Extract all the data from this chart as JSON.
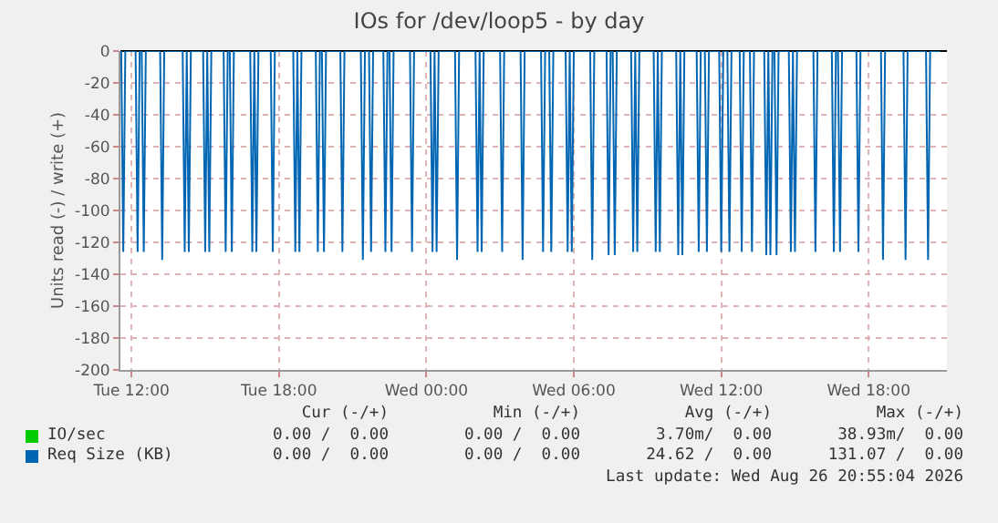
{
  "chart_data": {
    "type": "line",
    "title": "IOs for /dev/loop5 - by day",
    "ylabel": "Units read (-) / write (+)",
    "xlim": [
      "2026-08-25T11:33",
      "2026-08-26T21:11"
    ],
    "xticks": [
      {
        "value": "2026-08-25T12:00",
        "label": "Tue 12:00"
      },
      {
        "value": "2026-08-25T18:00",
        "label": "Tue 18:00"
      },
      {
        "value": "2026-08-26T00:00",
        "label": "Wed 00:00"
      },
      {
        "value": "2026-08-26T06:00",
        "label": "Wed 06:00"
      },
      {
        "value": "2026-08-26T12:00",
        "label": "Wed 12:00"
      },
      {
        "value": "2026-08-26T18:00",
        "label": "Wed 18:00"
      }
    ],
    "ylim": [
      -200,
      0
    ],
    "yticks": [
      -200,
      -180,
      -160,
      -140,
      -120,
      -100,
      -80,
      -60,
      -40,
      -20,
      0
    ],
    "grid": true,
    "legend": "bottom",
    "marker": "none",
    "line_style": "solid",
    "series": [
      {
        "name": "IO/sec",
        "color": "#00cc00"
      },
      {
        "name": "Req Size (KB)",
        "color": "#0066b3",
        "x": [
          "2026-08-25T11:35",
          "2026-08-25T11:40",
          "2026-08-25T11:45",
          "2026-08-25T12:10",
          "2026-08-25T12:15",
          "2026-08-25T12:20",
          "2026-08-25T12:25",
          "2026-08-25T12:30",
          "2026-08-25T12:35",
          "2026-08-25T13:10",
          "2026-08-25T13:15",
          "2026-08-25T13:20",
          "2026-08-25T14:05",
          "2026-08-25T14:10",
          "2026-08-25T14:15",
          "2026-08-25T14:20",
          "2026-08-25T14:25",
          "2026-08-25T14:55",
          "2026-08-25T15:00",
          "2026-08-25T15:05",
          "2026-08-25T15:10",
          "2026-08-25T15:15",
          "2026-08-25T15:45",
          "2026-08-25T15:50",
          "2026-08-25T15:55",
          "2026-08-25T16:00",
          "2026-08-25T16:05",
          "2026-08-25T16:10",
          "2026-08-25T16:50",
          "2026-08-25T16:55",
          "2026-08-25T17:00",
          "2026-08-25T17:05",
          "2026-08-25T17:10",
          "2026-08-25T17:40",
          "2026-08-25T17:45",
          "2026-08-25T17:50",
          "2026-08-25T18:35",
          "2026-08-25T18:40",
          "2026-08-25T18:45",
          "2026-08-25T18:50",
          "2026-08-25T18:55",
          "2026-08-25T19:30",
          "2026-08-25T19:35",
          "2026-08-25T19:40",
          "2026-08-25T19:45",
          "2026-08-25T19:50",
          "2026-08-25T19:55",
          "2026-08-25T20:30",
          "2026-08-25T20:35",
          "2026-08-25T20:40",
          "2026-08-25T21:20",
          "2026-08-25T21:25",
          "2026-08-25T21:30",
          "2026-08-25T21:40",
          "2026-08-25T21:45",
          "2026-08-25T21:50",
          "2026-08-25T22:15",
          "2026-08-25T22:20",
          "2026-08-25T22:25",
          "2026-08-25T22:30",
          "2026-08-25T22:35",
          "2026-08-25T22:40",
          "2026-08-25T23:20",
          "2026-08-25T23:25",
          "2026-08-25T23:30",
          "2026-08-26T00:10",
          "2026-08-26T00:15",
          "2026-08-26T00:20",
          "2026-08-26T00:25",
          "2026-08-26T00:30",
          "2026-08-26T01:10",
          "2026-08-26T01:15",
          "2026-08-26T01:20",
          "2026-08-26T02:00",
          "2026-08-26T02:05",
          "2026-08-26T02:10",
          "2026-08-26T02:15",
          "2026-08-26T02:20",
          "2026-08-26T03:00",
          "2026-08-26T03:05",
          "2026-08-26T03:10",
          "2026-08-26T03:50",
          "2026-08-26T03:55",
          "2026-08-26T04:00",
          "2026-08-26T04:40",
          "2026-08-26T04:45",
          "2026-08-26T04:50",
          "2026-08-26T05:00",
          "2026-08-26T05:05",
          "2026-08-26T05:10",
          "2026-08-26T05:40",
          "2026-08-26T05:45",
          "2026-08-26T05:50",
          "2026-08-26T05:55",
          "2026-08-26T06:00",
          "2026-08-26T06:40",
          "2026-08-26T06:45",
          "2026-08-26T06:50",
          "2026-08-26T07:20",
          "2026-08-26T07:25",
          "2026-08-26T07:30",
          "2026-08-26T07:35",
          "2026-08-26T07:40",
          "2026-08-26T07:45",
          "2026-08-26T08:20",
          "2026-08-26T08:25",
          "2026-08-26T08:30",
          "2026-08-26T08:35",
          "2026-08-26T08:40",
          "2026-08-26T09:15",
          "2026-08-26T09:20",
          "2026-08-26T09:25",
          "2026-08-26T09:30",
          "2026-08-26T09:35",
          "2026-08-26T10:10",
          "2026-08-26T10:15",
          "2026-08-26T10:20",
          "2026-08-26T10:25",
          "2026-08-26T10:30",
          "2026-08-26T11:00",
          "2026-08-26T11:05",
          "2026-08-26T11:10",
          "2026-08-26T11:20",
          "2026-08-26T11:25",
          "2026-08-26T11:30",
          "2026-08-26T11:55",
          "2026-08-26T12:00",
          "2026-08-26T12:05",
          "2026-08-26T12:15",
          "2026-08-26T12:20",
          "2026-08-26T12:25",
          "2026-08-26T12:45",
          "2026-08-26T12:50",
          "2026-08-26T12:55",
          "2026-08-26T13:10",
          "2026-08-26T13:15",
          "2026-08-26T13:20",
          "2026-08-26T13:45",
          "2026-08-26T13:50",
          "2026-08-26T13:55",
          "2026-08-26T14:00",
          "2026-08-26T14:05",
          "2026-08-26T14:10",
          "2026-08-26T14:15",
          "2026-08-26T14:20",
          "2026-08-26T14:45",
          "2026-08-26T14:50",
          "2026-08-26T14:55",
          "2026-08-26T15:00",
          "2026-08-26T15:05",
          "2026-08-26T15:45",
          "2026-08-26T15:50",
          "2026-08-26T15:55",
          "2026-08-26T16:30",
          "2026-08-26T16:35",
          "2026-08-26T16:40",
          "2026-08-26T16:45",
          "2026-08-26T16:50",
          "2026-08-26T16:55",
          "2026-08-26T17:30",
          "2026-08-26T17:35",
          "2026-08-26T17:40",
          "2026-08-26T18:30",
          "2026-08-26T18:35",
          "2026-08-26T18:40",
          "2026-08-26T19:25",
          "2026-08-26T19:30",
          "2026-08-26T19:35",
          "2026-08-26T20:20",
          "2026-08-26T20:25",
          "2026-08-26T20:30",
          "2026-08-26T20:55"
        ],
        "values": [
          0,
          -126,
          0,
          0,
          -126,
          0,
          0,
          -126,
          0,
          0,
          -131,
          0,
          0,
          -126,
          0,
          -126,
          0,
          0,
          -126,
          0,
          -126,
          0,
          0,
          -126,
          0,
          0,
          -126,
          0,
          0,
          -126,
          0,
          -126,
          0,
          0,
          -126,
          0,
          0,
          -126,
          0,
          -126,
          0,
          0,
          -126,
          0,
          0,
          -126,
          0,
          0,
          -126,
          0,
          0,
          -131,
          0,
          0,
          -126,
          0,
          0,
          -126,
          0,
          0,
          -126,
          0,
          0,
          -126,
          0,
          0,
          -126,
          0,
          -126,
          0,
          0,
          -131,
          0,
          0,
          -126,
          0,
          -126,
          0,
          0,
          -126,
          0,
          0,
          -131,
          0,
          0,
          -126,
          0,
          0,
          -126,
          0,
          0,
          -126,
          0,
          -126,
          0,
          0,
          -131,
          0,
          0,
          -128,
          0,
          0,
          -128,
          0,
          0,
          -126,
          0,
          -126,
          0,
          0,
          -126,
          0,
          -126,
          0,
          0,
          -128,
          0,
          -128,
          0,
          0,
          -126,
          0,
          0,
          -126,
          0,
          0,
          -126,
          0,
          0,
          -126,
          0,
          0,
          -126,
          0,
          0,
          -126,
          0,
          0,
          -128,
          0,
          -128,
          0,
          0,
          -128,
          0,
          0,
          -126,
          0,
          -126,
          0,
          0,
          -126,
          0,
          0,
          -126,
          0,
          0,
          -126,
          0,
          0,
          -126,
          0,
          0,
          -131,
          0,
          0,
          -131,
          0,
          0,
          -131,
          0,
          0
        ]
      }
    ],
    "annotations": [
      "Cur (-/+)",
      "Min (-/+)",
      "Avg (-/+)",
      "Max (-/+)",
      "0.00 /  0.00",
      "0.00 /  0.00",
      "3.70m/  0.00",
      "38.93m/  0.00",
      "0.00 /  0.00",
      "0.00 /  0.00",
      "24.62 /  0.00",
      "131.07 /  0.00",
      "Last update: Wed Aug 26 20:55:04 2026"
    ]
  }
}
